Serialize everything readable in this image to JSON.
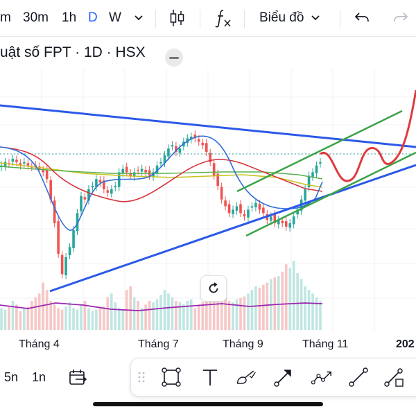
{
  "toolbar": {
    "intervals": [
      "m",
      "30m",
      "1h",
      "D",
      "W"
    ],
    "active_interval": "D",
    "chart_type_label": "Biểu đồ"
  },
  "header": {
    "title": "uật số FPT · 1D · HSX"
  },
  "chart": {
    "x_labels": [
      "Tháng 4",
      "Tháng 7",
      "Tháng 9",
      "Tháng 11"
    ],
    "year_label": "202"
  },
  "bottom": {
    "ranges": [
      "5n",
      "1n"
    ]
  },
  "colors": {
    "trendline": "#2b59e8",
    "channel": "#3aa346",
    "projection": "#e0393e",
    "up": "#26a69a",
    "down": "#ef5350",
    "active": "#2962ff"
  },
  "chart_data": {
    "type": "candlestick-with-drawings",
    "title": "uật số FPT · 1D · HSX",
    "xlabels": [
      "Tháng 4",
      "Tháng 7",
      "Tháng 9",
      "Tháng 11",
      "202"
    ],
    "candles_close": [
      62,
      63,
      62.5,
      64,
      63,
      62,
      63,
      62,
      61.5,
      62,
      61,
      60,
      58,
      52,
      45,
      36,
      30,
      35,
      38,
      43,
      48,
      53,
      52,
      55,
      56,
      58,
      57,
      55,
      54,
      55,
      56,
      60,
      61,
      60,
      59,
      60,
      60.5,
      61,
      60,
      59,
      60,
      62,
      63,
      65,
      67,
      68,
      66,
      67,
      69,
      70,
      70.5,
      70,
      69,
      68,
      66,
      63,
      59,
      56,
      52,
      50,
      48,
      49,
      50,
      48,
      47,
      49,
      50,
      51,
      49,
      48,
      46,
      47,
      45,
      46,
      45,
      44,
      45,
      47,
      49,
      52,
      55,
      59,
      60,
      62,
      63
    ],
    "volume": [
      30,
      28,
      32,
      40,
      35,
      26,
      30,
      32,
      40,
      45,
      50,
      65,
      55,
      40,
      35,
      30,
      28,
      32,
      38,
      30,
      28,
      35,
      40,
      30,
      26,
      28,
      30,
      32,
      45,
      50,
      38,
      30,
      28,
      55,
      60,
      45,
      40,
      30,
      35,
      40,
      38,
      42,
      48,
      55,
      50,
      45,
      40,
      38,
      35,
      40,
      42,
      30,
      35,
      38,
      44,
      60,
      55,
      50,
      45,
      48,
      40,
      38,
      42,
      44,
      46,
      50,
      55,
      60,
      58,
      62,
      65,
      70,
      72,
      74,
      80,
      90,
      85,
      95,
      78,
      70,
      60,
      55,
      50,
      45,
      40
    ]
  }
}
